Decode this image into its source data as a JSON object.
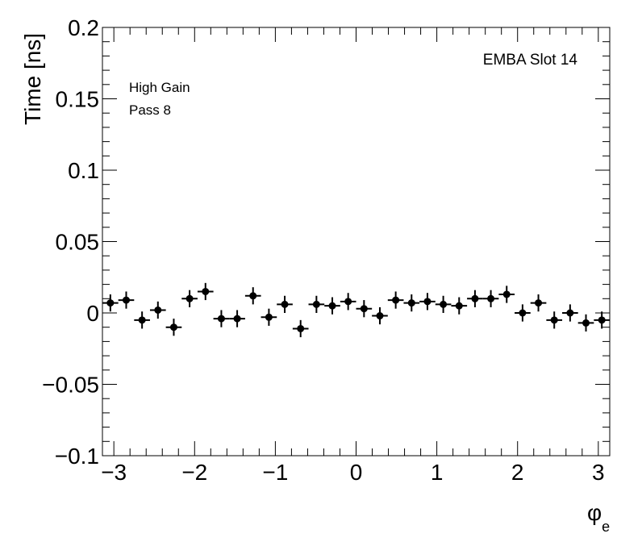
{
  "chart_data": {
    "type": "scatter",
    "xlabel": "φ",
    "xlabel_subscript": "e",
    "ylabel": "Time [ns]",
    "xlim": [
      -3.14159,
      3.14159
    ],
    "ylim": [
      -0.1,
      0.2
    ],
    "x_ticks": [
      -3,
      -2,
      -1,
      0,
      1,
      2,
      3
    ],
    "x_tick_labels": [
      "−3",
      "−2",
      "−1",
      "0",
      "1",
      "2",
      "3"
    ],
    "y_ticks": [
      -0.1,
      -0.05,
      0,
      0.05,
      0.1,
      0.15,
      0.2
    ],
    "y_tick_labels": [
      "−0.1",
      "−0.05",
      "0",
      "0.05",
      "0.1",
      "0.15",
      "0.2"
    ],
    "grid": false,
    "annotations": {
      "module": "EMBA Slot 14",
      "gain": "High Gain",
      "pass": "Pass 8"
    },
    "series": [
      {
        "x": [
          -3.0434,
          -2.8471,
          -2.6507,
          -2.4544,
          -2.258,
          -2.0617,
          -1.8653,
          -1.669,
          -1.4726,
          -1.2763,
          -1.0799,
          -0.8836,
          -0.6872,
          -0.4909,
          -0.2945,
          -0.0982,
          0.0982,
          0.2945,
          0.4909,
          0.6872,
          0.8836,
          1.0799,
          1.2763,
          1.4726,
          1.669,
          1.8653,
          2.0617,
          2.258,
          2.4544,
          2.6507,
          2.8471,
          3.0434
        ],
        "y": [
          0.007,
          0.009,
          -0.005,
          0.002,
          -0.01,
          0.01,
          0.015,
          -0.004,
          -0.004,
          0.012,
          -0.003,
          0.006,
          -0.011,
          0.006,
          0.005,
          0.008,
          0.003,
          -0.002,
          0.009,
          0.007,
          0.008,
          0.006,
          0.005,
          0.01,
          0.01,
          0.013,
          0.0,
          0.007,
          -0.005,
          0.0,
          -0.007,
          -0.005
        ],
        "y_err": [
          0.006,
          0.006,
          0.006,
          0.006,
          0.006,
          0.006,
          0.006,
          0.006,
          0.006,
          0.006,
          0.006,
          0.006,
          0.006,
          0.006,
          0.006,
          0.006,
          0.006,
          0.006,
          0.006,
          0.006,
          0.006,
          0.006,
          0.006,
          0.006,
          0.006,
          0.006,
          0.006,
          0.006,
          0.006,
          0.006,
          0.006,
          0.006
        ],
        "x_halfwidth": 0.0982,
        "marker": "circle",
        "color": "#000000"
      }
    ]
  }
}
